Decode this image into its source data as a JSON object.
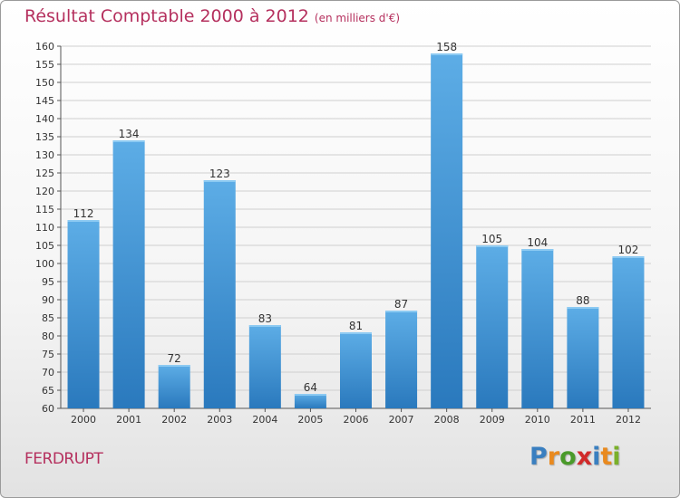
{
  "chart_data": {
    "type": "bar",
    "title": "Résultat Comptable 2000 à 2012",
    "subtitle": "(en milliers d'€)",
    "categories": [
      "2000",
      "2001",
      "2002",
      "2003",
      "2004",
      "2005",
      "2006",
      "2007",
      "2008",
      "2009",
      "2010",
      "2011",
      "2012"
    ],
    "values": [
      112,
      134,
      72,
      123,
      83,
      64,
      81,
      87,
      158,
      105,
      104,
      88,
      102
    ],
    "ylim": [
      60,
      160
    ],
    "yticks": [
      60,
      65,
      70,
      75,
      80,
      85,
      90,
      95,
      100,
      105,
      110,
      115,
      120,
      125,
      130,
      135,
      140,
      145,
      150,
      155,
      160
    ],
    "grid": true,
    "colors": {
      "bar_top": "#5dade6",
      "bar_bottom": "#2a79bd",
      "title": "#b5305e",
      "grid": "#cfcfcf"
    }
  },
  "footer": {
    "commune": "FERDRUPT",
    "logo_letters": [
      "P",
      "r",
      "o",
      "x",
      "i",
      "t",
      "i"
    ],
    "logo_colors": [
      "#3a7fc0",
      "#e98a1f",
      "#4a9a2a",
      "#d12a2a",
      "#3a7fc0",
      "#e98a1f",
      "#7ab02a"
    ]
  }
}
